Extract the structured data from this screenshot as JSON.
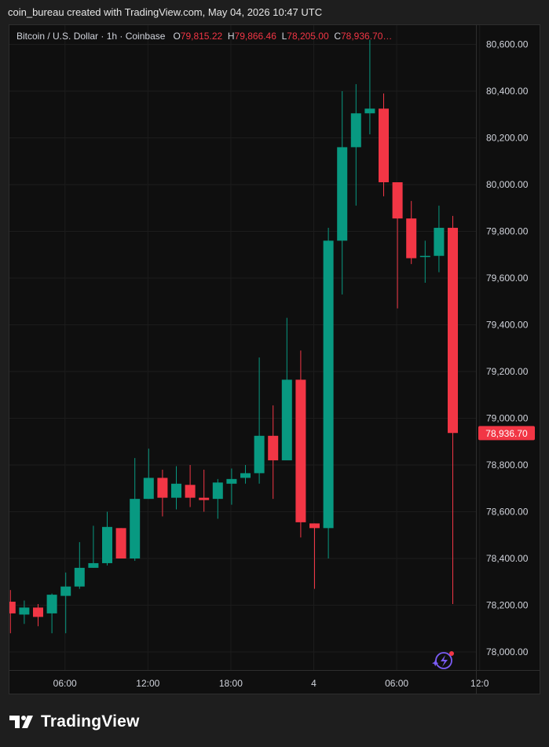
{
  "caption": "coin_bureau created with TradingView.com, May 04, 2026 10:47 UTC",
  "legend": {
    "symbol": "Bitcoin / U.S. Dollar · 1h · Coinbase",
    "o_label": "O",
    "o_value": "79,815.22",
    "h_label": "H",
    "h_value": "79,866.46",
    "l_label": "L",
    "l_value": "78,205.00",
    "c_label": "C",
    "c_value": "78,936.70…"
  },
  "last_price_label": "78,936.70",
  "footer": {
    "brand": "TradingView"
  },
  "icon": {
    "name": "flash-badge-icon"
  },
  "colors": {
    "up": "#089981",
    "down": "#f23645",
    "bg": "#0f0f0f",
    "grid": "#1c1c1c",
    "text": "#d1d4dc",
    "price_tag": "#f23645"
  },
  "chart_data": {
    "type": "candlestick",
    "title": "Bitcoin / U.S. Dollar · 1h · Coinbase",
    "ylim": [
      77920,
      80720
    ],
    "y_ticks": [
      78000,
      78200,
      78400,
      78600,
      78800,
      79000,
      79200,
      79400,
      79600,
      79800,
      80000,
      80200,
      80400,
      80600
    ],
    "y_tick_labels": [
      "78,000.00",
      "78,200.00",
      "78,400.00",
      "78,600.00",
      "78,800.00",
      "79,000.00",
      "79,200.00",
      "79,400.00",
      "79,600.00",
      "79,800.00",
      "80,000.00",
      "80,200.00",
      "80,400.00",
      "80,600.00"
    ],
    "x_ticks": [
      {
        "index": 3.5,
        "label": "06:00"
      },
      {
        "index": 9.5,
        "label": "12:00"
      },
      {
        "index": 15.5,
        "label": "18:00"
      },
      {
        "index": 21.5,
        "label": "4"
      },
      {
        "index": 27.5,
        "label": "06:00"
      },
      {
        "index": 33.5,
        "label": "12:0"
      }
    ],
    "grid": true,
    "candles": [
      {
        "o": 78215,
        "h": 78265,
        "l": 78080,
        "c": 78165
      },
      {
        "o": 78160,
        "h": 78220,
        "l": 78120,
        "c": 78190
      },
      {
        "o": 78190,
        "h": 78205,
        "l": 78110,
        "c": 78150
      },
      {
        "o": 78165,
        "h": 78250,
        "l": 78080,
        "c": 78245
      },
      {
        "o": 78240,
        "h": 78340,
        "l": 78080,
        "c": 78280
      },
      {
        "o": 78280,
        "h": 78470,
        "l": 78270,
        "c": 78360
      },
      {
        "o": 78360,
        "h": 78540,
        "l": 78360,
        "c": 78380
      },
      {
        "o": 78380,
        "h": 78600,
        "l": 78370,
        "c": 78535
      },
      {
        "o": 78530,
        "h": 78530,
        "l": 78400,
        "c": 78400
      },
      {
        "o": 78400,
        "h": 78830,
        "l": 78390,
        "c": 78655
      },
      {
        "o": 78655,
        "h": 78870,
        "l": 78655,
        "c": 78745
      },
      {
        "o": 78745,
        "h": 78780,
        "l": 78580,
        "c": 78660
      },
      {
        "o": 78660,
        "h": 78795,
        "l": 78610,
        "c": 78720
      },
      {
        "o": 78715,
        "h": 78800,
        "l": 78620,
        "c": 78660
      },
      {
        "o": 78660,
        "h": 78780,
        "l": 78600,
        "c": 78650
      },
      {
        "o": 78655,
        "h": 78740,
        "l": 78570,
        "c": 78725
      },
      {
        "o": 78720,
        "h": 78785,
        "l": 78630,
        "c": 78740
      },
      {
        "o": 78745,
        "h": 78800,
        "l": 78720,
        "c": 78765
      },
      {
        "o": 78765,
        "h": 79260,
        "l": 78720,
        "c": 78925
      },
      {
        "o": 78925,
        "h": 79055,
        "l": 78655,
        "c": 78820
      },
      {
        "o": 78820,
        "h": 79430,
        "l": 78820,
        "c": 79165
      },
      {
        "o": 79165,
        "h": 79290,
        "l": 78490,
        "c": 78555
      },
      {
        "o": 78550,
        "h": 78550,
        "l": 78270,
        "c": 78530
      },
      {
        "o": 78530,
        "h": 79815,
        "l": 78400,
        "c": 79760
      },
      {
        "o": 79760,
        "h": 80400,
        "l": 79530,
        "c": 80160
      },
      {
        "o": 80160,
        "h": 80430,
        "l": 79910,
        "c": 80305
      },
      {
        "o": 80305,
        "h": 80620,
        "l": 80215,
        "c": 80325
      },
      {
        "o": 80325,
        "h": 80390,
        "l": 79950,
        "c": 80010
      },
      {
        "o": 80010,
        "h": 80010,
        "l": 79470,
        "c": 79855
      },
      {
        "o": 79855,
        "h": 79930,
        "l": 79660,
        "c": 79685
      },
      {
        "o": 79690,
        "h": 79760,
        "l": 79580,
        "c": 79695
      },
      {
        "o": 79695,
        "h": 79910,
        "l": 79625,
        "c": 79815
      },
      {
        "o": 79815,
        "h": 79866,
        "l": 78205,
        "c": 78937
      }
    ],
    "last_price": 78936.7
  }
}
